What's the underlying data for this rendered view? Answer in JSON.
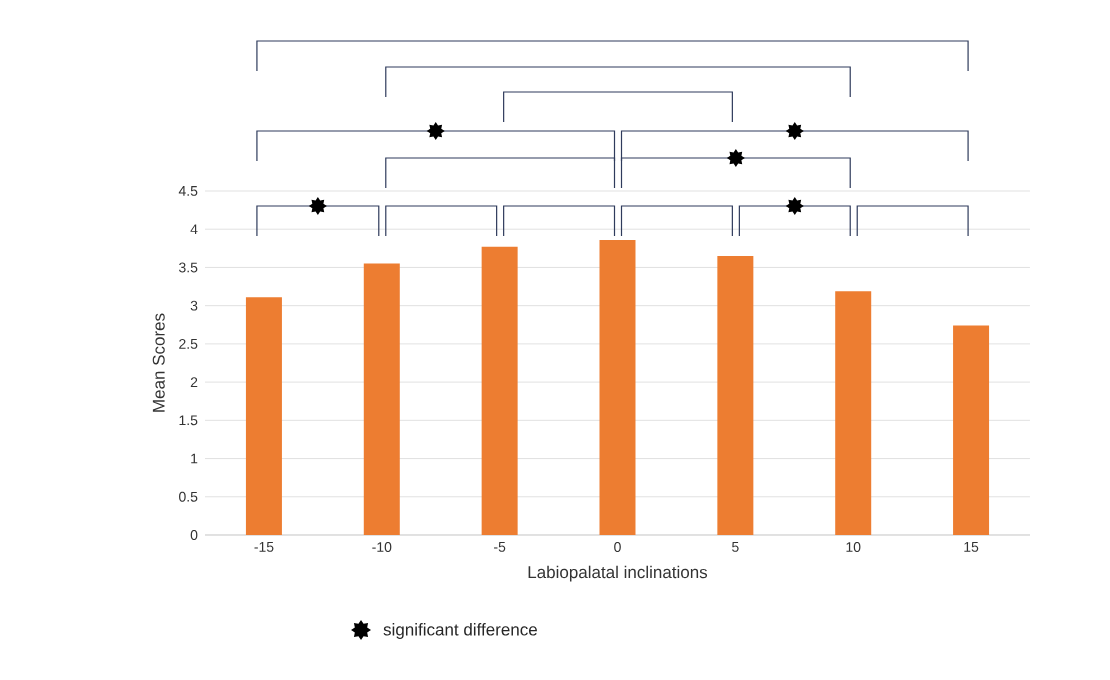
{
  "chart_data": {
    "type": "bar",
    "xlabel": "Labiopalatal inclinations",
    "ylabel": "Mean Scores",
    "categories": [
      "-15",
      "-10",
      "-5",
      "0",
      "5",
      "10",
      "15"
    ],
    "values": [
      3.11,
      3.55,
      3.77,
      3.86,
      3.65,
      3.19,
      2.74
    ],
    "color": "#ed7d31",
    "ylim": [
      0,
      4.5
    ],
    "yticks": [
      0,
      0.5,
      1,
      1.5,
      2,
      2.5,
      3,
      3.5,
      4,
      4.5
    ],
    "grid": "y",
    "annotations": [
      "significant difference"
    ]
  }
}
